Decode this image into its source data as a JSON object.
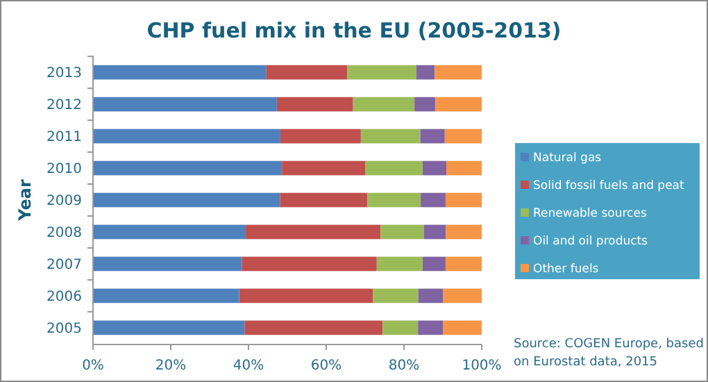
{
  "chart_data": {
    "type": "bar",
    "orientation": "horizontal",
    "stacked": true,
    "title": "CHP fuel mix in the EU (2005-2013)",
    "ylabel": "Year",
    "categories": [
      "2013",
      "2012",
      "2011",
      "2010",
      "2009",
      "2008",
      "2007",
      "2006",
      "2005"
    ],
    "series": [
      {
        "name": "Natural gas",
        "color": "#4f81bd",
        "values": [
          44.6,
          47.3,
          48.2,
          48.6,
          48.1,
          39.3,
          38.3,
          37.6,
          39.0
        ]
      },
      {
        "name": "Solid fossil fuels and peat",
        "color": "#c0504d",
        "values": [
          20.8,
          19.6,
          20.7,
          21.5,
          22.5,
          34.7,
          34.7,
          34.4,
          35.5
        ]
      },
      {
        "name": "Renewable sources",
        "color": "#9bbb59",
        "values": [
          17.8,
          15.8,
          15.3,
          14.7,
          13.7,
          11.1,
          11.8,
          11.7,
          9.1
        ]
      },
      {
        "name": "Oil and oil products",
        "color": "#8064a2",
        "values": [
          4.7,
          5.4,
          6.3,
          6.1,
          6.4,
          5.7,
          5.9,
          6.4,
          6.4
        ]
      },
      {
        "name": "Other fuels",
        "color": "#f79646",
        "values": [
          12.1,
          11.9,
          9.5,
          9.1,
          9.3,
          9.2,
          9.3,
          9.9,
          10.0
        ]
      }
    ],
    "xlim": [
      0,
      100
    ],
    "xticks": [
      {
        "value": 0,
        "label": "0%"
      },
      {
        "value": 20,
        "label": "20%"
      },
      {
        "value": 40,
        "label": "40%"
      },
      {
        "value": 60,
        "label": "60%"
      },
      {
        "value": 80,
        "label": "80%"
      },
      {
        "value": 100,
        "label": "100%"
      }
    ],
    "grid": false,
    "legend": "right",
    "annotations": [
      "Source: COGEN Europe, based on Eurostat data, 2015"
    ]
  }
}
